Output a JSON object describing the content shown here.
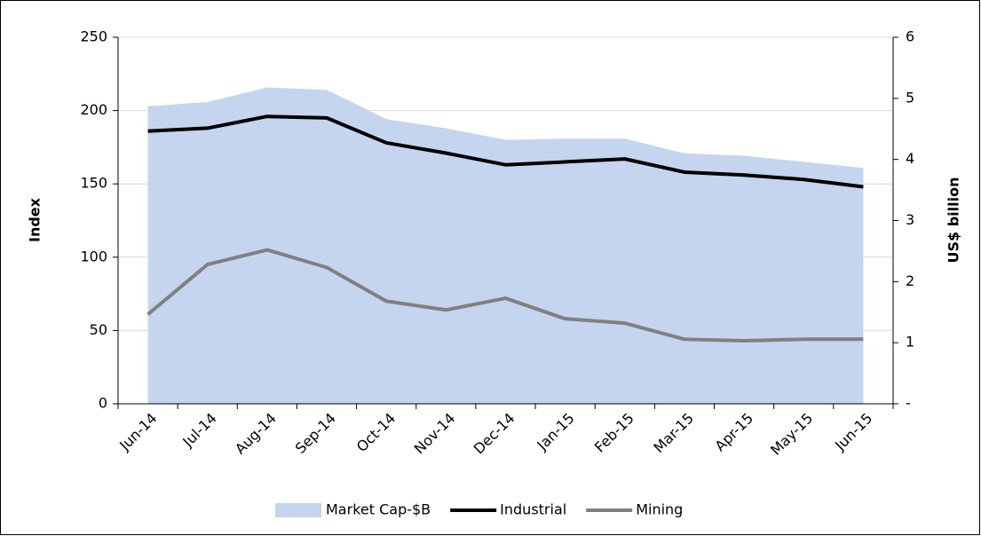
{
  "chart_data": {
    "type": "line",
    "categories": [
      "Jun-14",
      "Jul-14",
      "Aug-14",
      "Sep-14",
      "Oct-14",
      "Nov-14",
      "Dec-14",
      "Jan-15",
      "Feb-15",
      "Mar-15",
      "Apr-15",
      "May-15",
      "Jun-15"
    ],
    "y_label": "Index",
    "y2_label": "US$ billion",
    "ylim": [
      0,
      250
    ],
    "yticks": [
      0,
      50,
      100,
      150,
      200,
      250
    ],
    "y2lim": [
      0,
      6
    ],
    "y2ticks": [
      {
        "value": 0,
        "label": "-"
      },
      1,
      2,
      3,
      4,
      5,
      6
    ],
    "grid": true,
    "legend": "bottom",
    "series": [
      {
        "name": "Market Cap-$B",
        "type": "area",
        "axis": "y2",
        "color": "#c5d5ef",
        "values": [
          4.87,
          4.94,
          5.18,
          5.14,
          4.66,
          4.51,
          4.32,
          4.34,
          4.34,
          4.1,
          4.06,
          3.96,
          3.86
        ]
      },
      {
        "name": "Industrial",
        "type": "line",
        "color": "#000000",
        "values": [
          186,
          188,
          196,
          195,
          178,
          171,
          163,
          165,
          167,
          158,
          156,
          153,
          148
        ]
      },
      {
        "name": "Mining",
        "type": "line",
        "color": "#808080",
        "values": [
          61,
          95,
          105,
          93,
          70,
          64,
          72,
          58,
          55,
          44,
          43,
          44,
          44
        ]
      }
    ]
  }
}
